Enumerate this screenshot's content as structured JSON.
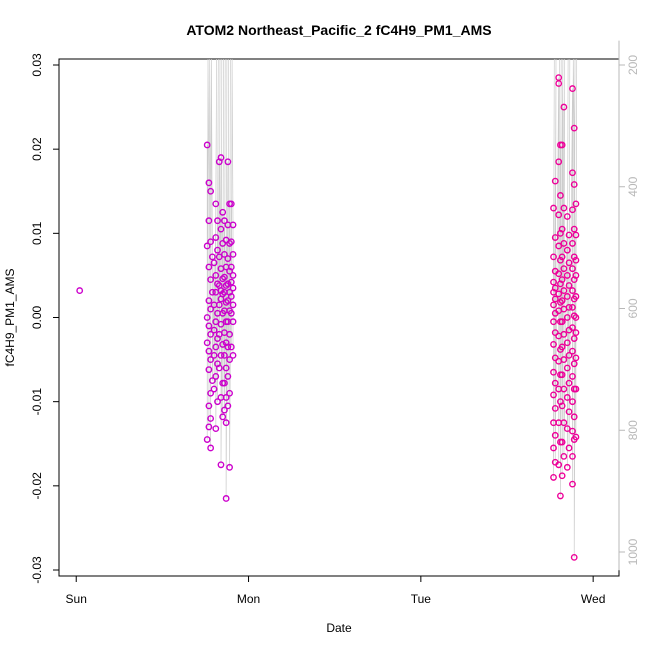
{
  "chart_data": {
    "type": "scatter",
    "title": "ATOM2 Northeast_Pacific_2 fC4H9_PM1_AMS",
    "xlabel": "Date",
    "ylabel": "fC4H9_PM1_AMS",
    "x_ticks": [
      "Sun",
      "Mon",
      "Tue",
      "Wed"
    ],
    "ylim": [
      -0.03,
      0.03
    ],
    "y_ticks": [
      "-0.03",
      "-0.02",
      "-0.01",
      "0.00",
      "0.01",
      "0.02",
      "0.03"
    ],
    "secondary_y": {
      "ticks": [
        "200",
        "400",
        "600",
        "800",
        "1000"
      ],
      "reversed": true,
      "range": [
        160,
        1030
      ],
      "line_color": "#cccccc"
    },
    "grid": false,
    "colors": {
      "series_mon": "#cc00cc",
      "series_wed": "#ee0099",
      "line": "#cccccc",
      "axis": "#000000",
      "right_axis": "#b8b8b8"
    },
    "series": [
      {
        "points": [
          {
            "x": 0.02,
            "y": 0.0032
          },
          {
            "x": 0.76,
            "y": 0.0205
          },
          {
            "x": 0.77,
            "y": 0.016
          },
          {
            "x": 0.78,
            "y": 0.015
          },
          {
            "x": 0.77,
            "y": 0.0115
          },
          {
            "x": 0.78,
            "y": 0.009
          },
          {
            "x": 0.76,
            "y": 0.0085
          },
          {
            "x": 0.79,
            "y": 0.0072
          },
          {
            "x": 0.77,
            "y": 0.006
          },
          {
            "x": 0.78,
            "y": 0.0045
          },
          {
            "x": 0.79,
            "y": 0.003
          },
          {
            "x": 0.77,
            "y": 0.002
          },
          {
            "x": 0.78,
            "y": 0.001
          },
          {
            "x": 0.76,
            "y": 0.0
          },
          {
            "x": 0.77,
            "y": -0.001
          },
          {
            "x": 0.78,
            "y": -0.002
          },
          {
            "x": 0.76,
            "y": -0.003
          },
          {
            "x": 0.77,
            "y": -0.004
          },
          {
            "x": 0.78,
            "y": -0.005
          },
          {
            "x": 0.77,
            "y": -0.0062
          },
          {
            "x": 0.79,
            "y": -0.0075
          },
          {
            "x": 0.78,
            "y": -0.009
          },
          {
            "x": 0.77,
            "y": -0.0105
          },
          {
            "x": 0.78,
            "y": -0.012
          },
          {
            "x": 0.77,
            "y": -0.013
          },
          {
            "x": 0.76,
            "y": -0.0145
          },
          {
            "x": 0.78,
            "y": -0.0155
          },
          {
            "x": 0.81,
            "y": 0.0135
          },
          {
            "x": 0.82,
            "y": 0.0115
          },
          {
            "x": 0.81,
            "y": 0.0095
          },
          {
            "x": 0.82,
            "y": 0.008
          },
          {
            "x": 0.8,
            "y": 0.0065
          },
          {
            "x": 0.81,
            "y": 0.005
          },
          {
            "x": 0.82,
            "y": 0.004
          },
          {
            "x": 0.81,
            "y": 0.003
          },
          {
            "x": 0.8,
            "y": 0.0015
          },
          {
            "x": 0.82,
            "y": 0.0005
          },
          {
            "x": 0.81,
            "y": -0.0005
          },
          {
            "x": 0.8,
            "y": -0.0015
          },
          {
            "x": 0.82,
            "y": -0.0025
          },
          {
            "x": 0.81,
            "y": -0.0035
          },
          {
            "x": 0.8,
            "y": -0.0045
          },
          {
            "x": 0.82,
            "y": -0.0055
          },
          {
            "x": 0.81,
            "y": -0.007
          },
          {
            "x": 0.8,
            "y": -0.0085
          },
          {
            "x": 0.82,
            "y": -0.01
          },
          {
            "x": 0.81,
            "y": -0.0132
          },
          {
            "x": 0.83,
            "y": 0.0185
          },
          {
            "x": 0.84,
            "y": 0.019
          },
          {
            "x": 0.85,
            "y": 0.0125
          },
          {
            "x": 0.84,
            "y": 0.0105
          },
          {
            "x": 0.85,
            "y": 0.0088
          },
          {
            "x": 0.83,
            "y": 0.0072
          },
          {
            "x": 0.84,
            "y": 0.0058
          },
          {
            "x": 0.85,
            "y": 0.0046
          },
          {
            "x": 0.83,
            "y": 0.0038
          },
          {
            "x": 0.84,
            "y": 0.0032
          },
          {
            "x": 0.85,
            "y": 0.0028
          },
          {
            "x": 0.84,
            "y": 0.0022
          },
          {
            "x": 0.83,
            "y": 0.0015
          },
          {
            "x": 0.85,
            "y": 0.0005
          },
          {
            "x": 0.84,
            "y": -0.0008
          },
          {
            "x": 0.83,
            "y": -0.002
          },
          {
            "x": 0.85,
            "y": -0.0032
          },
          {
            "x": 0.84,
            "y": -0.0045
          },
          {
            "x": 0.83,
            "y": -0.006
          },
          {
            "x": 0.85,
            "y": -0.0078
          },
          {
            "x": 0.84,
            "y": -0.0095
          },
          {
            "x": 0.85,
            "y": -0.0118
          },
          {
            "x": 0.84,
            "y": -0.0175
          },
          {
            "x": 0.86,
            "y": 0.0115
          },
          {
            "x": 0.87,
            "y": 0.0092
          },
          {
            "x": 0.86,
            "y": 0.0075
          },
          {
            "x": 0.87,
            "y": 0.006
          },
          {
            "x": 0.86,
            "y": 0.0048
          },
          {
            "x": 0.87,
            "y": 0.0038
          },
          {
            "x": 0.86,
            "y": 0.003
          },
          {
            "x": 0.87,
            "y": 0.0018
          },
          {
            "x": 0.86,
            "y": 0.0008
          },
          {
            "x": 0.87,
            "y": -0.0005
          },
          {
            "x": 0.86,
            "y": -0.0018
          },
          {
            "x": 0.87,
            "y": -0.003
          },
          {
            "x": 0.86,
            "y": -0.0045
          },
          {
            "x": 0.87,
            "y": -0.006
          },
          {
            "x": 0.86,
            "y": -0.0078
          },
          {
            "x": 0.87,
            "y": -0.0095
          },
          {
            "x": 0.86,
            "y": -0.011
          },
          {
            "x": 0.87,
            "y": -0.0125
          },
          {
            "x": 0.88,
            "y": 0.0185
          },
          {
            "x": 0.89,
            "y": 0.0135
          },
          {
            "x": 0.88,
            "y": 0.011
          },
          {
            "x": 0.89,
            "y": 0.0088
          },
          {
            "x": 0.88,
            "y": 0.007
          },
          {
            "x": 0.89,
            "y": 0.0055
          },
          {
            "x": 0.88,
            "y": 0.004
          },
          {
            "x": 0.89,
            "y": 0.003
          },
          {
            "x": 0.88,
            "y": 0.002
          },
          {
            "x": 0.89,
            "y": 0.0008
          },
          {
            "x": 0.88,
            "y": -0.0005
          },
          {
            "x": 0.89,
            "y": -0.002
          },
          {
            "x": 0.88,
            "y": -0.0035
          },
          {
            "x": 0.89,
            "y": -0.005
          },
          {
            "x": 0.88,
            "y": -0.007
          },
          {
            "x": 0.89,
            "y": -0.009
          },
          {
            "x": 0.88,
            "y": -0.0105
          },
          {
            "x": 0.89,
            "y": -0.0178
          },
          {
            "x": 0.87,
            "y": -0.0215
          },
          {
            "x": 0.9,
            "y": 0.0135
          },
          {
            "x": 0.91,
            "y": 0.011
          },
          {
            "x": 0.9,
            "y": 0.009
          },
          {
            "x": 0.91,
            "y": 0.0075
          },
          {
            "x": 0.9,
            "y": 0.006
          },
          {
            "x": 0.91,
            "y": 0.005
          },
          {
            "x": 0.9,
            "y": 0.0042
          },
          {
            "x": 0.91,
            "y": 0.0035
          },
          {
            "x": 0.9,
            "y": 0.0025
          },
          {
            "x": 0.91,
            "y": 0.0015
          },
          {
            "x": 0.9,
            "y": 0.0005
          },
          {
            "x": 0.91,
            "y": -0.0005
          },
          {
            "x": 0.9,
            "y": -0.0035
          },
          {
            "x": 0.91,
            "y": -0.0045
          }
        ]
      },
      {
        "points": [
          {
            "x": 2.78,
            "y": 0.0162
          },
          {
            "x": 2.77,
            "y": 0.013
          },
          {
            "x": 2.78,
            "y": 0.0095
          },
          {
            "x": 2.77,
            "y": 0.0072
          },
          {
            "x": 2.78,
            "y": 0.0055
          },
          {
            "x": 2.77,
            "y": 0.0042
          },
          {
            "x": 2.78,
            "y": 0.0035
          },
          {
            "x": 2.77,
            "y": 0.003
          },
          {
            "x": 2.78,
            "y": 0.0022
          },
          {
            "x": 2.77,
            "y": 0.0015
          },
          {
            "x": 2.78,
            "y": 0.0005
          },
          {
            "x": 2.77,
            "y": -0.0005
          },
          {
            "x": 2.78,
            "y": -0.0018
          },
          {
            "x": 2.77,
            "y": -0.0032
          },
          {
            "x": 2.78,
            "y": -0.0048
          },
          {
            "x": 2.77,
            "y": -0.0065
          },
          {
            "x": 2.78,
            "y": -0.0078
          },
          {
            "x": 2.77,
            "y": -0.0092
          },
          {
            "x": 2.78,
            "y": -0.0108
          },
          {
            "x": 2.77,
            "y": -0.0125
          },
          {
            "x": 2.78,
            "y": -0.014
          },
          {
            "x": 2.77,
            "y": -0.0155
          },
          {
            "x": 2.78,
            "y": -0.0172
          },
          {
            "x": 2.77,
            "y": -0.019
          },
          {
            "x": 2.8,
            "y": 0.0285
          },
          {
            "x": 2.8,
            "y": 0.0278
          },
          {
            "x": 2.81,
            "y": 0.0205
          },
          {
            "x": 2.8,
            "y": 0.0185
          },
          {
            "x": 2.81,
            "y": 0.0145
          },
          {
            "x": 2.8,
            "y": 0.0122
          },
          {
            "x": 2.81,
            "y": 0.01
          },
          {
            "x": 2.8,
            "y": 0.0085
          },
          {
            "x": 2.81,
            "y": 0.0068
          },
          {
            "x": 2.8,
            "y": 0.0052
          },
          {
            "x": 2.81,
            "y": 0.004
          },
          {
            "x": 2.8,
            "y": 0.0028
          },
          {
            "x": 2.81,
            "y": 0.0018
          },
          {
            "x": 2.8,
            "y": 0.0008
          },
          {
            "x": 2.81,
            "y": -0.0005
          },
          {
            "x": 2.8,
            "y": -0.0022
          },
          {
            "x": 2.81,
            "y": -0.0038
          },
          {
            "x": 2.8,
            "y": -0.0052
          },
          {
            "x": 2.81,
            "y": -0.0068
          },
          {
            "x": 2.8,
            "y": -0.0085
          },
          {
            "x": 2.81,
            "y": -0.01
          },
          {
            "x": 2.8,
            "y": -0.0125
          },
          {
            "x": 2.81,
            "y": -0.0148
          },
          {
            "x": 2.8,
            "y": -0.0175
          },
          {
            "x": 2.81,
            "y": -0.0212
          },
          {
            "x": 2.83,
            "y": 0.025
          },
          {
            "x": 2.82,
            "y": 0.0205
          },
          {
            "x": 2.83,
            "y": 0.013
          },
          {
            "x": 2.82,
            "y": 0.0105
          },
          {
            "x": 2.83,
            "y": 0.0088
          },
          {
            "x": 2.82,
            "y": 0.0072
          },
          {
            "x": 2.83,
            "y": 0.0058
          },
          {
            "x": 2.82,
            "y": 0.0045
          },
          {
            "x": 2.83,
            "y": 0.0032
          },
          {
            "x": 2.82,
            "y": 0.002
          },
          {
            "x": 2.83,
            "y": 0.001
          },
          {
            "x": 2.82,
            "y": -0.0005
          },
          {
            "x": 2.83,
            "y": -0.002
          },
          {
            "x": 2.82,
            "y": -0.0035
          },
          {
            "x": 2.83,
            "y": -0.005
          },
          {
            "x": 2.82,
            "y": -0.0068
          },
          {
            "x": 2.83,
            "y": -0.0085
          },
          {
            "x": 2.82,
            "y": -0.0105
          },
          {
            "x": 2.83,
            "y": -0.0125
          },
          {
            "x": 2.82,
            "y": -0.0148
          },
          {
            "x": 2.83,
            "y": -0.0165
          },
          {
            "x": 2.82,
            "y": -0.0188
          },
          {
            "x": 2.85,
            "y": 0.012
          },
          {
            "x": 2.86,
            "y": 0.0098
          },
          {
            "x": 2.85,
            "y": 0.008
          },
          {
            "x": 2.86,
            "y": 0.0065
          },
          {
            "x": 2.85,
            "y": 0.005
          },
          {
            "x": 2.86,
            "y": 0.0038
          },
          {
            "x": 2.85,
            "y": 0.0025
          },
          {
            "x": 2.86,
            "y": 0.0012
          },
          {
            "x": 2.85,
            "y": 0.0
          },
          {
            "x": 2.86,
            "y": -0.0015
          },
          {
            "x": 2.85,
            "y": -0.003
          },
          {
            "x": 2.86,
            "y": -0.0045
          },
          {
            "x": 2.85,
            "y": -0.006
          },
          {
            "x": 2.86,
            "y": -0.0078
          },
          {
            "x": 2.85,
            "y": -0.0095
          },
          {
            "x": 2.86,
            "y": -0.0112
          },
          {
            "x": 2.85,
            "y": -0.0132
          },
          {
            "x": 2.86,
            "y": -0.0155
          },
          {
            "x": 2.85,
            "y": -0.0178
          },
          {
            "x": 2.88,
            "y": 0.0272
          },
          {
            "x": 2.89,
            "y": 0.0225
          },
          {
            "x": 2.88,
            "y": 0.0172
          },
          {
            "x": 2.89,
            "y": 0.0158
          },
          {
            "x": 2.88,
            "y": 0.0128
          },
          {
            "x": 2.89,
            "y": 0.0105
          },
          {
            "x": 2.88,
            "y": 0.0088
          },
          {
            "x": 2.89,
            "y": 0.0072
          },
          {
            "x": 2.88,
            "y": 0.0058
          },
          {
            "x": 2.89,
            "y": 0.0045
          },
          {
            "x": 2.88,
            "y": 0.0032
          },
          {
            "x": 2.89,
            "y": 0.0022
          },
          {
            "x": 2.88,
            "y": 0.0012
          },
          {
            "x": 2.89,
            "y": 0.0002
          },
          {
            "x": 2.88,
            "y": -0.0012
          },
          {
            "x": 2.89,
            "y": -0.0025
          },
          {
            "x": 2.88,
            "y": -0.004
          },
          {
            "x": 2.89,
            "y": -0.0055
          },
          {
            "x": 2.88,
            "y": -0.007
          },
          {
            "x": 2.89,
            "y": -0.0085
          },
          {
            "x": 2.88,
            "y": -0.01
          },
          {
            "x": 2.89,
            "y": -0.0118
          },
          {
            "x": 2.88,
            "y": -0.0135
          },
          {
            "x": 2.89,
            "y": -0.0145
          },
          {
            "x": 2.88,
            "y": -0.0165
          },
          {
            "x": 2.88,
            "y": -0.0198
          },
          {
            "x": 2.89,
            "y": -0.0285
          },
          {
            "x": 2.9,
            "y": 0.0135
          },
          {
            "x": 2.9,
            "y": 0.0098
          },
          {
            "x": 2.9,
            "y": 0.0068
          },
          {
            "x": 2.9,
            "y": 0.005
          },
          {
            "x": 2.9,
            "y": 0.0025
          },
          {
            "x": 2.9,
            "y": 0.0
          },
          {
            "x": 2.9,
            "y": -0.0018
          },
          {
            "x": 2.9,
            "y": -0.0048
          },
          {
            "x": 2.9,
            "y": -0.0085
          },
          {
            "x": 2.9,
            "y": -0.0142
          }
        ]
      }
    ]
  }
}
